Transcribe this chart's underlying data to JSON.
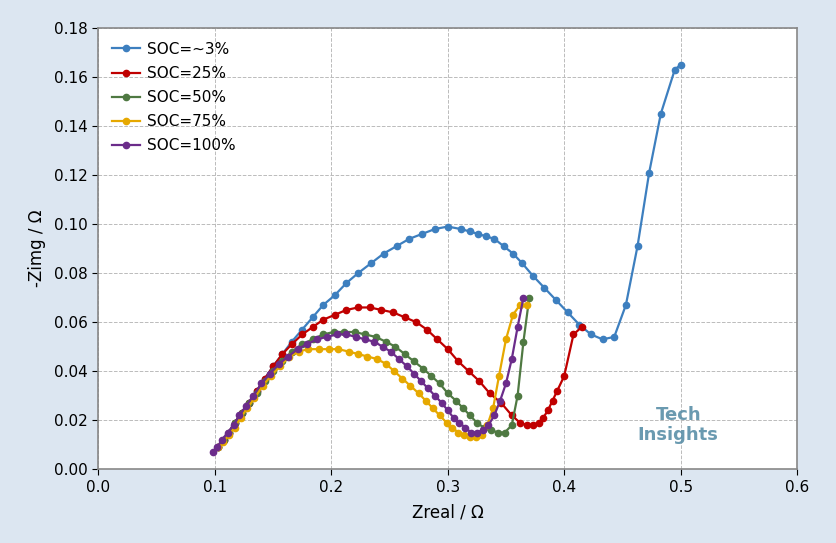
{
  "xlabel": "Zreal / Ω",
  "ylabel": "-Zimg / Ω",
  "xlim": [
    0.0,
    0.6
  ],
  "ylim": [
    0.0,
    0.18
  ],
  "xticks": [
    0.0,
    0.1,
    0.2,
    0.3,
    0.4,
    0.5,
    0.6
  ],
  "yticks": [
    0.0,
    0.02,
    0.04,
    0.06,
    0.08,
    0.1,
    0.12,
    0.14,
    0.16,
    0.18
  ],
  "legend_labels": [
    "SOC=∼3%",
    "SOC=25%",
    "SOC=50%",
    "SOC=75%",
    "SOC=100%"
  ],
  "colors": [
    "#3D7FBF",
    "#C00000",
    "#4F7942",
    "#E6A800",
    "#6B2C8A"
  ],
  "soc3_x": [
    0.103,
    0.108,
    0.112,
    0.117,
    0.123,
    0.129,
    0.136,
    0.143,
    0.15,
    0.158,
    0.166,
    0.175,
    0.184,
    0.193,
    0.203,
    0.213,
    0.223,
    0.234,
    0.245,
    0.256,
    0.267,
    0.278,
    0.289,
    0.3,
    0.311,
    0.319,
    0.326,
    0.333,
    0.34,
    0.348,
    0.356,
    0.364,
    0.373,
    0.383,
    0.393,
    0.403,
    0.413,
    0.423,
    0.433,
    0.443,
    0.453,
    0.463,
    0.473,
    0.483,
    0.495,
    0.5
  ],
  "soc3_y": [
    0.009,
    0.012,
    0.015,
    0.019,
    0.023,
    0.027,
    0.032,
    0.037,
    0.042,
    0.047,
    0.052,
    0.057,
    0.062,
    0.067,
    0.071,
    0.076,
    0.08,
    0.084,
    0.088,
    0.091,
    0.094,
    0.096,
    0.098,
    0.099,
    0.098,
    0.097,
    0.096,
    0.095,
    0.094,
    0.091,
    0.088,
    0.084,
    0.079,
    0.074,
    0.069,
    0.064,
    0.059,
    0.055,
    0.053,
    0.054,
    0.067,
    0.091,
    0.121,
    0.145,
    0.163,
    0.165
  ],
  "soc25_x": [
    0.103,
    0.108,
    0.112,
    0.117,
    0.123,
    0.129,
    0.136,
    0.143,
    0.15,
    0.158,
    0.166,
    0.175,
    0.184,
    0.193,
    0.203,
    0.213,
    0.223,
    0.233,
    0.243,
    0.253,
    0.263,
    0.273,
    0.282,
    0.291,
    0.3,
    0.309,
    0.318,
    0.327,
    0.336,
    0.346,
    0.355,
    0.362,
    0.368,
    0.373,
    0.378,
    0.382,
    0.386,
    0.39,
    0.394,
    0.4,
    0.408,
    0.415
  ],
  "soc25_y": [
    0.009,
    0.012,
    0.015,
    0.019,
    0.023,
    0.027,
    0.032,
    0.037,
    0.042,
    0.047,
    0.051,
    0.055,
    0.058,
    0.061,
    0.063,
    0.065,
    0.066,
    0.066,
    0.065,
    0.064,
    0.062,
    0.06,
    0.057,
    0.053,
    0.049,
    0.044,
    0.04,
    0.036,
    0.031,
    0.027,
    0.022,
    0.019,
    0.018,
    0.018,
    0.019,
    0.021,
    0.024,
    0.028,
    0.032,
    0.038,
    0.055,
    0.058
  ],
  "soc50_x": [
    0.103,
    0.108,
    0.112,
    0.117,
    0.123,
    0.129,
    0.136,
    0.143,
    0.15,
    0.158,
    0.166,
    0.175,
    0.184,
    0.193,
    0.202,
    0.211,
    0.22,
    0.229,
    0.238,
    0.247,
    0.255,
    0.263,
    0.271,
    0.279,
    0.286,
    0.293,
    0.3,
    0.307,
    0.313,
    0.319,
    0.325,
    0.331,
    0.337,
    0.343,
    0.349,
    0.355,
    0.36,
    0.365,
    0.37
  ],
  "soc50_y": [
    0.009,
    0.012,
    0.015,
    0.019,
    0.023,
    0.027,
    0.031,
    0.036,
    0.04,
    0.044,
    0.048,
    0.051,
    0.053,
    0.055,
    0.056,
    0.056,
    0.056,
    0.055,
    0.054,
    0.052,
    0.05,
    0.047,
    0.044,
    0.041,
    0.038,
    0.035,
    0.031,
    0.028,
    0.025,
    0.022,
    0.019,
    0.017,
    0.016,
    0.015,
    0.015,
    0.018,
    0.03,
    0.052,
    0.07
  ],
  "soc75_x": [
    0.103,
    0.107,
    0.112,
    0.117,
    0.122,
    0.128,
    0.134,
    0.141,
    0.148,
    0.156,
    0.164,
    0.172,
    0.18,
    0.189,
    0.198,
    0.206,
    0.215,
    0.223,
    0.231,
    0.239,
    0.247,
    0.254,
    0.261,
    0.268,
    0.275,
    0.281,
    0.287,
    0.293,
    0.299,
    0.304,
    0.309,
    0.314,
    0.319,
    0.324,
    0.329,
    0.334,
    0.339,
    0.344,
    0.35,
    0.356,
    0.362,
    0.368
  ],
  "soc75_y": [
    0.009,
    0.011,
    0.014,
    0.017,
    0.021,
    0.025,
    0.029,
    0.034,
    0.038,
    0.042,
    0.046,
    0.048,
    0.049,
    0.049,
    0.049,
    0.049,
    0.048,
    0.047,
    0.046,
    0.045,
    0.043,
    0.04,
    0.037,
    0.034,
    0.031,
    0.028,
    0.025,
    0.022,
    0.019,
    0.017,
    0.015,
    0.014,
    0.013,
    0.013,
    0.014,
    0.018,
    0.025,
    0.038,
    0.053,
    0.063,
    0.067,
    0.067
  ],
  "soc100_x": [
    0.098,
    0.102,
    0.106,
    0.111,
    0.116,
    0.121,
    0.127,
    0.133,
    0.14,
    0.147,
    0.155,
    0.163,
    0.171,
    0.179,
    0.188,
    0.196,
    0.205,
    0.213,
    0.221,
    0.229,
    0.237,
    0.244,
    0.251,
    0.258,
    0.265,
    0.271,
    0.277,
    0.283,
    0.289,
    0.295,
    0.3,
    0.305,
    0.31,
    0.315,
    0.32,
    0.325,
    0.33,
    0.335,
    0.34,
    0.345,
    0.35,
    0.355,
    0.36,
    0.365
  ],
  "soc100_y": [
    0.007,
    0.009,
    0.012,
    0.015,
    0.018,
    0.022,
    0.026,
    0.03,
    0.035,
    0.039,
    0.043,
    0.046,
    0.049,
    0.051,
    0.053,
    0.054,
    0.055,
    0.055,
    0.054,
    0.053,
    0.052,
    0.05,
    0.048,
    0.045,
    0.042,
    0.039,
    0.036,
    0.033,
    0.03,
    0.027,
    0.024,
    0.021,
    0.019,
    0.017,
    0.015,
    0.015,
    0.016,
    0.018,
    0.022,
    0.028,
    0.035,
    0.045,
    0.058,
    0.07
  ],
  "marker_size": 4.5,
  "line_width": 1.6,
  "font_size": 12,
  "tick_font_size": 11,
  "legend_font_size": 11,
  "fig_bg": "#dce6f1",
  "plot_bg": "#ffffff",
  "techinsights_color": "#5a8fa8",
  "grid_color": "#bbbbbb",
  "border_color": "#aaaaaa"
}
